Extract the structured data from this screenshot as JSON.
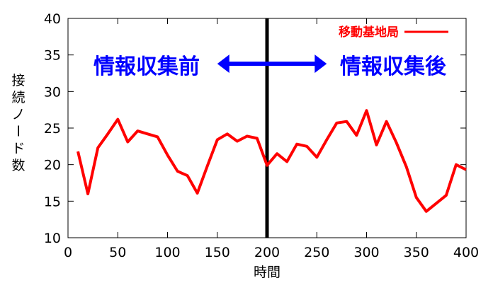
{
  "chart_data": {
    "type": "line",
    "xlabel": "時間",
    "ylabel": "接続ノード数",
    "xlim": [
      0,
      400
    ],
    "ylim": [
      10,
      40
    ],
    "xticks": [
      0,
      50,
      100,
      150,
      200,
      250,
      300,
      350,
      400
    ],
    "yticks": [
      10,
      15,
      20,
      25,
      30,
      35,
      40
    ],
    "grid": false,
    "legend_position": "top-right",
    "series": [
      {
        "name": "移動基地局",
        "color": "#ff0000",
        "x": [
          10,
          20,
          30,
          40,
          50,
          60,
          70,
          80,
          90,
          100,
          110,
          120,
          130,
          140,
          150,
          160,
          170,
          180,
          190,
          200,
          210,
          220,
          230,
          240,
          250,
          260,
          270,
          280,
          290,
          300,
          310,
          320,
          330,
          340,
          350,
          360,
          370,
          380,
          390,
          400
        ],
        "y": [
          21.8,
          16.0,
          22.3,
          24.2,
          26.2,
          23.1,
          24.6,
          24.2,
          23.8,
          21.3,
          19.1,
          18.5,
          16.1,
          19.8,
          23.4,
          24.2,
          23.2,
          23.9,
          23.6,
          19.9,
          21.5,
          20.4,
          22.8,
          22.5,
          21.0,
          23.4,
          25.7,
          25.9,
          24.0,
          27.4,
          22.7,
          25.9,
          23.0,
          19.7,
          15.5,
          13.6,
          14.7,
          15.8,
          20.0,
          19.3
        ]
      }
    ],
    "annotations": {
      "divider_x": 200,
      "divider_color": "#000000",
      "arrow_y": 33.8,
      "arrow_x_range": [
        150,
        260
      ],
      "arrow_color": "#0000ff",
      "left_label": "情報収集前",
      "right_label": "情報収集後"
    }
  }
}
